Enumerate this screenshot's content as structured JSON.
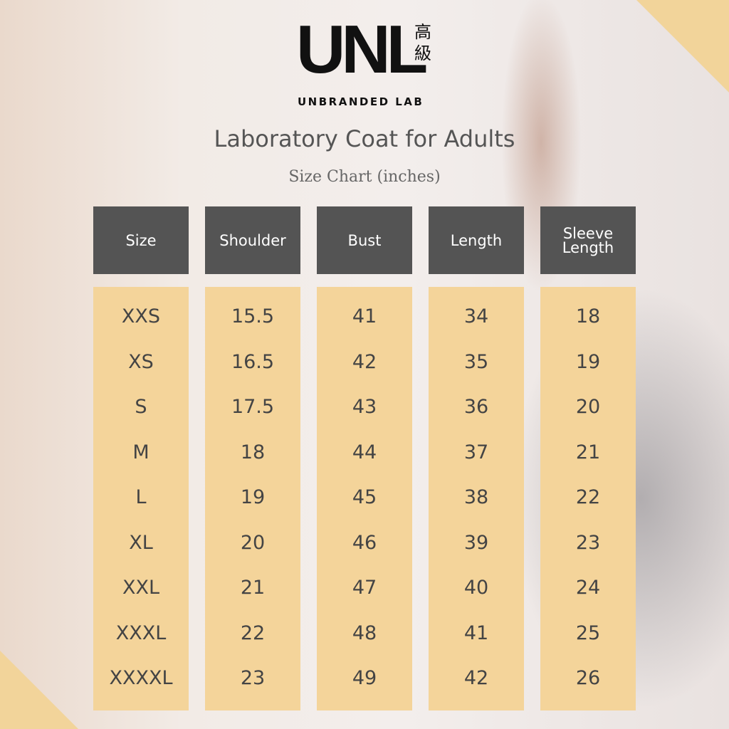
{
  "logo": {
    "mark": "UNL",
    "tag": "高級",
    "name": "UNBRANDED LAB"
  },
  "title": "Laboratory Coat for Adults",
  "subtitle": "Size Chart (inches)",
  "table": {
    "headers": [
      "Size",
      "Shoulder",
      "Bust",
      "Length",
      "Sleeve Length"
    ],
    "rows": [
      [
        "XXS",
        15.5,
        41,
        34,
        18
      ],
      [
        "XS",
        16.5,
        42,
        35,
        19
      ],
      [
        "S",
        17.5,
        43,
        36,
        20
      ],
      [
        "M",
        18,
        44,
        37,
        21
      ],
      [
        "L",
        19,
        45,
        38,
        22
      ],
      [
        "XL",
        20,
        46,
        39,
        23
      ],
      [
        "XXL",
        21,
        47,
        40,
        24
      ],
      [
        "XXXL",
        22,
        48,
        41,
        25
      ],
      [
        "XXXXL",
        23,
        49,
        42,
        26
      ]
    ]
  }
}
